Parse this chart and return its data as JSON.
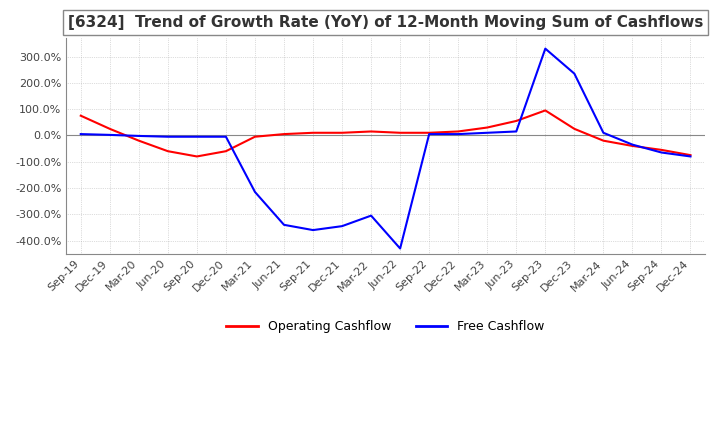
{
  "title": "[6324]  Trend of Growth Rate (YoY) of 12-Month Moving Sum of Cashflows",
  "title_fontsize": 11,
  "background_color": "#ffffff",
  "grid_color": "#aaaaaa",
  "ylim": [
    -450,
    370
  ],
  "yticks": [
    -400,
    -300,
    -200,
    -100,
    0,
    100,
    200,
    300
  ],
  "legend_labels": [
    "Operating Cashflow",
    "Free Cashflow"
  ],
  "legend_colors": [
    "#ff0000",
    "#0000ff"
  ],
  "x_labels": [
    "Sep-19",
    "Dec-19",
    "Mar-20",
    "Jun-20",
    "Sep-20",
    "Dec-20",
    "Mar-21",
    "Jun-21",
    "Sep-21",
    "Dec-21",
    "Mar-22",
    "Jun-22",
    "Sep-22",
    "Dec-22",
    "Mar-23",
    "Jun-23",
    "Sep-23",
    "Dec-23",
    "Mar-24",
    "Jun-24",
    "Sep-24",
    "Dec-24"
  ],
  "operating_cashflow": [
    75,
    25,
    -20,
    -60,
    -80,
    -60,
    -5,
    5,
    10,
    10,
    15,
    10,
    10,
    15,
    30,
    55,
    95,
    25,
    -20,
    -40,
    -55,
    -75
  ],
  "free_cashflow": [
    5,
    2,
    -2,
    -5,
    -5,
    -5,
    -215,
    -340,
    -360,
    -345,
    -305,
    -430,
    5,
    5,
    10,
    15,
    330,
    235,
    10,
    -35,
    -65,
    -80
  ]
}
